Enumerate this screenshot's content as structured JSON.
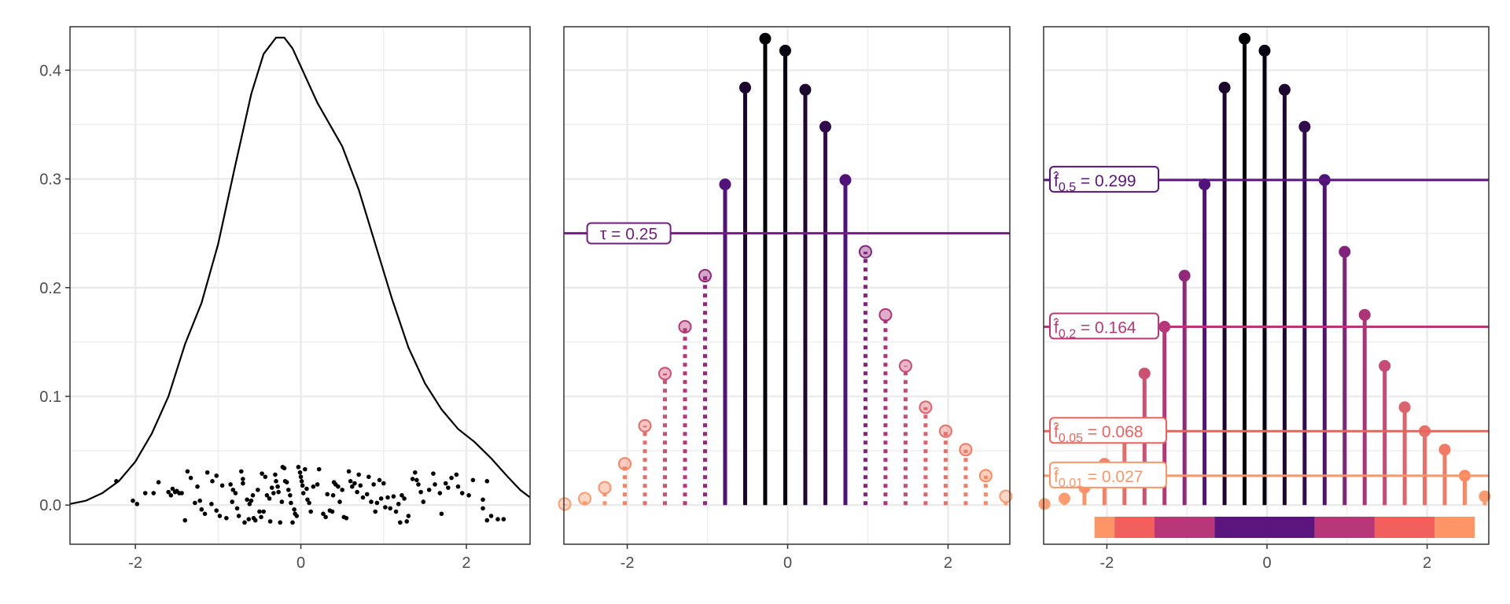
{
  "chart_data": [
    {
      "type": "line",
      "title": "",
      "xlabel": "",
      "ylabel": "",
      "xlim": [
        -2.79,
        2.77
      ],
      "ylim": [
        -0.036,
        0.44
      ],
      "x_ticks": [
        "-2",
        "0",
        "2"
      ],
      "x_tick_values": [
        -2,
        0,
        2
      ],
      "y_ticks": [
        "0.0",
        "0.1",
        "0.2",
        "0.3",
        "0.4"
      ],
      "y_tick_values": [
        0,
        0.1,
        0.2,
        0.3,
        0.4
      ],
      "grid": true,
      "density": [
        [
          -2.79,
          0.001
        ],
        [
          -2.6,
          0.004
        ],
        [
          -2.4,
          0.011
        ],
        [
          -2.2,
          0.022
        ],
        [
          -2.0,
          0.04
        ],
        [
          -1.8,
          0.066
        ],
        [
          -1.6,
          0.1
        ],
        [
          -1.4,
          0.148
        ],
        [
          -1.2,
          0.186
        ],
        [
          -1.0,
          0.24
        ],
        [
          -0.8,
          0.31
        ],
        [
          -0.6,
          0.378
        ],
        [
          -0.45,
          0.415
        ],
        [
          -0.3,
          0.43
        ],
        [
          -0.2,
          0.43
        ],
        [
          -0.1,
          0.42
        ],
        [
          0.05,
          0.395
        ],
        [
          0.2,
          0.37
        ],
        [
          0.35,
          0.35
        ],
        [
          0.5,
          0.33
        ],
        [
          0.7,
          0.29
        ],
        [
          0.9,
          0.24
        ],
        [
          1.1,
          0.19
        ],
        [
          1.3,
          0.145
        ],
        [
          1.5,
          0.112
        ],
        [
          1.7,
          0.088
        ],
        [
          1.9,
          0.07
        ],
        [
          2.1,
          0.058
        ],
        [
          2.3,
          0.043
        ],
        [
          2.5,
          0.026
        ],
        [
          2.65,
          0.014
        ],
        [
          2.77,
          0.007
        ]
      ],
      "points": [
        [
          -2.23,
          0.022
        ],
        [
          -2.03,
          0.004
        ],
        [
          -1.98,
          0.001
        ],
        [
          -1.88,
          0.011
        ],
        [
          -1.78,
          0.011
        ],
        [
          -1.72,
          0.021
        ],
        [
          -1.6,
          0.012
        ],
        [
          -1.57,
          0.009
        ],
        [
          -1.55,
          0.015
        ],
        [
          -1.52,
          0.012
        ],
        [
          -1.5,
          0.013
        ],
        [
          -1.47,
          0.011
        ],
        [
          -1.44,
          0.011
        ],
        [
          -1.4,
          -0.014
        ],
        [
          -1.37,
          0.031
        ],
        [
          -1.33,
          0.025
        ],
        [
          -1.28,
          0.002
        ],
        [
          -1.22,
          0.004
        ],
        [
          -1.25,
          0.017
        ],
        [
          -1.2,
          -0.004
        ],
        [
          -1.16,
          -0.008
        ],
        [
          -1.13,
          0.03
        ],
        [
          -1.07,
          0.022
        ],
        [
          -1.08,
          0.001
        ],
        [
          -1.02,
          0.027
        ],
        [
          -1.02,
          -0.005
        ],
        [
          -0.98,
          -0.01
        ],
        [
          -0.95,
          0.018
        ],
        [
          -0.9,
          -0.012
        ],
        [
          -0.85,
          0.019
        ],
        [
          -0.83,
          0.003
        ],
        [
          -0.82,
          0.014
        ],
        [
          -0.79,
          0.011
        ],
        [
          -0.77,
          -0.003
        ],
        [
          -0.75,
          -0.01
        ],
        [
          -0.72,
          0.031
        ],
        [
          -0.7,
          0.024
        ],
        [
          -0.7,
          0.02
        ],
        [
          -0.68,
          -0.016
        ],
        [
          -0.65,
          0.005
        ],
        [
          -0.63,
          -0.013
        ],
        [
          -0.62,
          0.001
        ],
        [
          -0.6,
          0.004
        ],
        [
          -0.58,
          0.009
        ],
        [
          -0.57,
          -0.012
        ],
        [
          -0.55,
          -0.014
        ],
        [
          -0.52,
          0.014
        ],
        [
          -0.5,
          -0.006
        ],
        [
          -0.48,
          -0.011
        ],
        [
          -0.47,
          0.029
        ],
        [
          -0.45,
          -0.006
        ],
        [
          -0.43,
          0.026
        ],
        [
          -0.41,
          0.009
        ],
        [
          -0.38,
          0.006
        ],
        [
          -0.37,
          -0.015
        ],
        [
          -0.35,
          0.016
        ],
        [
          -0.33,
          0.011
        ],
        [
          -0.31,
          0.028
        ],
        [
          -0.3,
          0.022
        ],
        [
          -0.28,
          0.017
        ],
        [
          -0.27,
          0.012
        ],
        [
          -0.25,
          -0.016
        ],
        [
          -0.23,
          0.003
        ],
        [
          -0.22,
          0.035
        ],
        [
          -0.2,
          0.034
        ],
        [
          -0.19,
          0.022
        ],
        [
          -0.17,
          0.021
        ],
        [
          -0.15,
          0.014
        ],
        [
          -0.13,
          0.009
        ],
        [
          -0.12,
          0.002
        ],
        [
          -0.1,
          -0.016
        ],
        [
          -0.08,
          -0.004
        ],
        [
          -0.07,
          -0.008
        ],
        [
          -0.05,
          -0.01
        ],
        [
          -0.03,
          0.035
        ],
        [
          -0.01,
          0.03
        ],
        [
          0.0,
          0.026
        ],
        [
          0.01,
          0.022
        ],
        [
          0.02,
          0.018
        ],
        [
          0.03,
          0.011
        ],
        [
          0.05,
          0.033
        ],
        [
          0.07,
          0.015
        ],
        [
          0.08,
          0.005
        ],
        [
          0.1,
          0.002
        ],
        [
          0.12,
          -0.006
        ],
        [
          0.15,
          0.017
        ],
        [
          0.2,
          0.019
        ],
        [
          0.22,
          0.033
        ],
        [
          0.27,
          -0.008
        ],
        [
          0.3,
          -0.011
        ],
        [
          0.32,
          0.01
        ],
        [
          0.35,
          -0.005
        ],
        [
          0.38,
          -0.006
        ],
        [
          0.39,
          0.009
        ],
        [
          0.4,
          0.021
        ],
        [
          0.42,
          0.019
        ],
        [
          0.45,
          0.017
        ],
        [
          0.47,
          0.003
        ],
        [
          0.5,
          0.014
        ],
        [
          0.52,
          -0.011
        ],
        [
          0.55,
          -0.012
        ],
        [
          0.58,
          0.031
        ],
        [
          0.6,
          0.022
        ],
        [
          0.62,
          0.017
        ],
        [
          0.65,
          0.02
        ],
        [
          0.68,
          0.012
        ],
        [
          0.7,
          0.028
        ],
        [
          0.72,
          0.018
        ],
        [
          0.75,
          0.007
        ],
        [
          0.8,
          0.01
        ],
        [
          0.82,
          0.026
        ],
        [
          0.85,
          0.003
        ],
        [
          0.88,
          0.019
        ],
        [
          0.9,
          -0.006
        ],
        [
          0.92,
          0.002
        ],
        [
          0.95,
          0.023
        ],
        [
          0.97,
          0.006
        ],
        [
          1.0,
          0.02
        ],
        [
          1.02,
          -0.002
        ],
        [
          1.05,
          0.007
        ],
        [
          1.08,
          -0.003
        ],
        [
          1.12,
          0.008
        ],
        [
          1.15,
          -0.006
        ],
        [
          1.18,
          0.001
        ],
        [
          1.2,
          -0.016
        ],
        [
          1.22,
          0.009
        ],
        [
          1.25,
          0.006
        ],
        [
          1.28,
          -0.015
        ],
        [
          1.3,
          -0.01
        ],
        [
          1.35,
          0.024
        ],
        [
          1.38,
          0.03
        ],
        [
          1.4,
          0.023
        ],
        [
          1.42,
          0.019
        ],
        [
          1.45,
          0.012
        ],
        [
          1.48,
          0.003
        ],
        [
          1.55,
          0.014
        ],
        [
          1.6,
          0.029
        ],
        [
          1.62,
          0.019
        ],
        [
          1.68,
          0.011
        ],
        [
          1.7,
          -0.008
        ],
        [
          1.75,
          0.02
        ],
        [
          1.78,
          0.016
        ],
        [
          1.82,
          0.025
        ],
        [
          1.88,
          0.028
        ],
        [
          1.9,
          0.017
        ],
        [
          1.95,
          0.011
        ],
        [
          2.03,
          0.009
        ],
        [
          2.08,
          0.023
        ],
        [
          2.2,
          0.005
        ],
        [
          2.25,
          0.022
        ],
        [
          2.2,
          -0.003
        ],
        [
          2.25,
          -0.014
        ],
        [
          2.3,
          -0.01
        ],
        [
          2.38,
          -0.013
        ],
        [
          2.45,
          -0.013
        ]
      ]
    },
    {
      "type": "lollipop",
      "xlim": [
        -2.79,
        2.77
      ],
      "ylim": [
        -0.036,
        0.44
      ],
      "x_ticks": [
        "-2",
        "0",
        "2"
      ],
      "x_tick_values": [
        -2,
        0,
        2
      ],
      "threshold": {
        "value": 0.25,
        "label": "τ = 0.25",
        "label_x": -1.98
      },
      "x": [
        -2.78,
        -2.53,
        -2.28,
        -2.03,
        -1.78,
        -1.53,
        -1.28,
        -1.03,
        -0.78,
        -0.53,
        -0.28,
        -0.03,
        0.22,
        0.47,
        0.72,
        0.97,
        1.22,
        1.47,
        1.72,
        1.97,
        2.22,
        2.47,
        2.72
      ],
      "values": [
        0.001,
        0.006,
        0.016,
        0.038,
        0.073,
        0.121,
        0.164,
        0.211,
        0.295,
        0.384,
        0.429,
        0.418,
        0.382,
        0.348,
        0.299,
        0.233,
        0.175,
        0.128,
        0.09,
        0.068,
        0.051,
        0.027,
        0.008
      ]
    },
    {
      "type": "lollipop",
      "xlim": [
        -2.79,
        2.77
      ],
      "ylim": [
        -0.036,
        0.44
      ],
      "x_ticks": [
        "-2",
        "0",
        "2"
      ],
      "x_tick_values": [
        -2,
        0,
        2
      ],
      "levels": [
        {
          "alpha": "0.5",
          "value": 0.299,
          "text": " = 0.299",
          "color": "#5a167e"
        },
        {
          "alpha": "0.2",
          "value": 0.164,
          "text": " = 0.164",
          "color": "#b73779"
        },
        {
          "alpha": "0.05",
          "value": 0.068,
          "text": " = 0.068",
          "color": "#f1605d"
        },
        {
          "alpha": "0.01",
          "value": 0.027,
          "text": " = 0.027",
          "color": "#fd9567"
        }
      ],
      "hdr_segments": [
        {
          "from": -2.155,
          "to": -1.905,
          "level": "0.01"
        },
        {
          "from": -1.905,
          "to": -1.405,
          "level": "0.05"
        },
        {
          "from": -1.405,
          "to": -0.655,
          "level": "0.2"
        },
        {
          "from": -0.655,
          "to": 0.595,
          "level": "0.5"
        },
        {
          "from": 0.595,
          "to": 1.345,
          "level": "0.2"
        },
        {
          "from": 1.345,
          "to": 2.095,
          "level": "0.05"
        },
        {
          "from": 2.095,
          "to": 2.595,
          "level": "0.01"
        }
      ]
    }
  ],
  "colors": {
    "grid": "#ebebeb",
    "border": "#333333",
    "tick_text": "#4d4d4d",
    "tau": "#721f81"
  }
}
